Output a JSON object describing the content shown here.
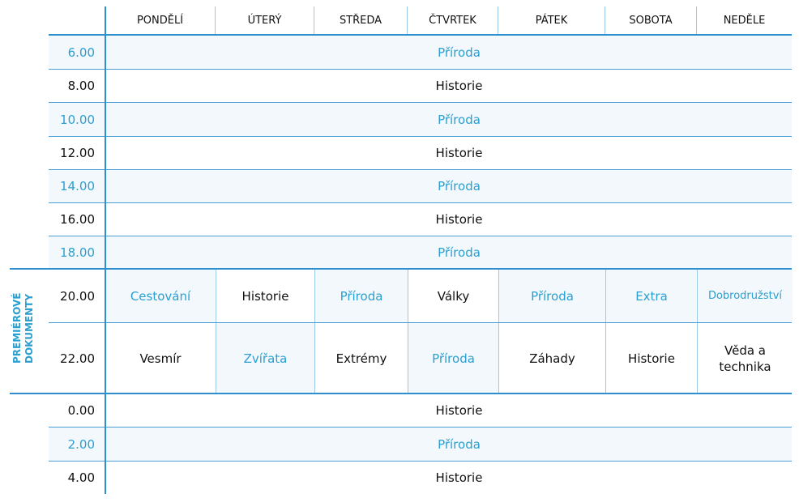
{
  "colors": {
    "accent": "#2a9fd0",
    "line": "#2e8fcf",
    "shade": "#f3f8fc"
  },
  "days": [
    "PONDĚLÍ",
    "ÚTERÝ",
    "STŘEDA",
    "ČTVRTEK",
    "PÁTEK",
    "SOBOTA",
    "NEDĚLE"
  ],
  "premiere_label": "PREMIÉROVÉ DOKUMENTY",
  "rows": [
    {
      "time": "6.00",
      "program": "Příroda",
      "highlight": true
    },
    {
      "time": "8.00",
      "program": "Historie",
      "highlight": false
    },
    {
      "time": "10.00",
      "program": "Příroda",
      "highlight": true
    },
    {
      "time": "12.00",
      "program": "Historie",
      "highlight": false
    },
    {
      "time": "14.00",
      "program": "Příroda",
      "highlight": true
    },
    {
      "time": "16.00",
      "program": "Historie",
      "highlight": false
    },
    {
      "time": "18.00",
      "program": "Příroda",
      "highlight": true
    },
    {
      "time": "20.00",
      "cells": [
        {
          "program": "Cestování",
          "highlight": true
        },
        {
          "program": "Historie",
          "highlight": false
        },
        {
          "program": "Příroda",
          "highlight": true
        },
        {
          "program": "Války",
          "highlight": false
        },
        {
          "program": "Příroda",
          "highlight": true
        },
        {
          "program": "Extra",
          "highlight": true
        },
        {
          "program": "Dobrodružství",
          "highlight": true
        }
      ]
    },
    {
      "time": "22.00",
      "cells": [
        {
          "program": "Vesmír",
          "highlight": false
        },
        {
          "program": "Zvířata",
          "highlight": true
        },
        {
          "program": "Extrémy",
          "highlight": false
        },
        {
          "program": "Příroda",
          "highlight": true
        },
        {
          "program": "Záhady",
          "highlight": false
        },
        {
          "program": "Historie",
          "highlight": false
        },
        {
          "program": "Věda a technika",
          "highlight": false
        }
      ]
    },
    {
      "time": "0.00",
      "program": "Historie",
      "highlight": false
    },
    {
      "time": "2.00",
      "program": "Příroda",
      "highlight": true
    },
    {
      "time": "4.00",
      "program": "Historie",
      "highlight": false
    }
  ]
}
